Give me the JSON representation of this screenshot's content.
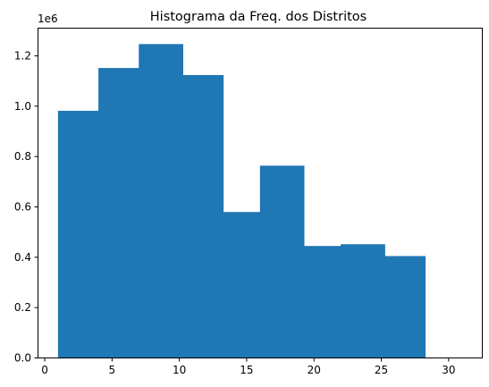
{
  "chart_data": {
    "type": "bar",
    "title": "Histograma da Freq. dos Distritos",
    "xlabel": "",
    "ylabel": "",
    "y_offset_label": "1e6",
    "xlim": [
      -0.5,
      32.5
    ],
    "ylim": [
      0,
      1.31
    ],
    "bar_color": "#1f77b4",
    "bar_width": 3.3,
    "x": [
      2.67,
      5.67,
      8.67,
      11.67,
      14.67,
      17.67,
      20.67,
      23.67,
      26.67
    ],
    "values": [
      0.98,
      1.15,
      1.245,
      1.122,
      0.578,
      0.762,
      0.443,
      0.45,
      0.403
    ],
    "x_ticks": [
      0,
      5,
      10,
      15,
      20,
      25,
      30
    ],
    "x_tick_labels": [
      "0",
      "5",
      "10",
      "15",
      "20",
      "25",
      "30"
    ],
    "y_ticks": [
      0.0,
      0.2,
      0.4,
      0.6,
      0.8,
      1.0,
      1.2
    ],
    "y_tick_labels": [
      "0.0",
      "0.2",
      "0.4",
      "0.6",
      "0.8",
      "1.0",
      "1.2"
    ],
    "grid": false,
    "legend": "none"
  }
}
